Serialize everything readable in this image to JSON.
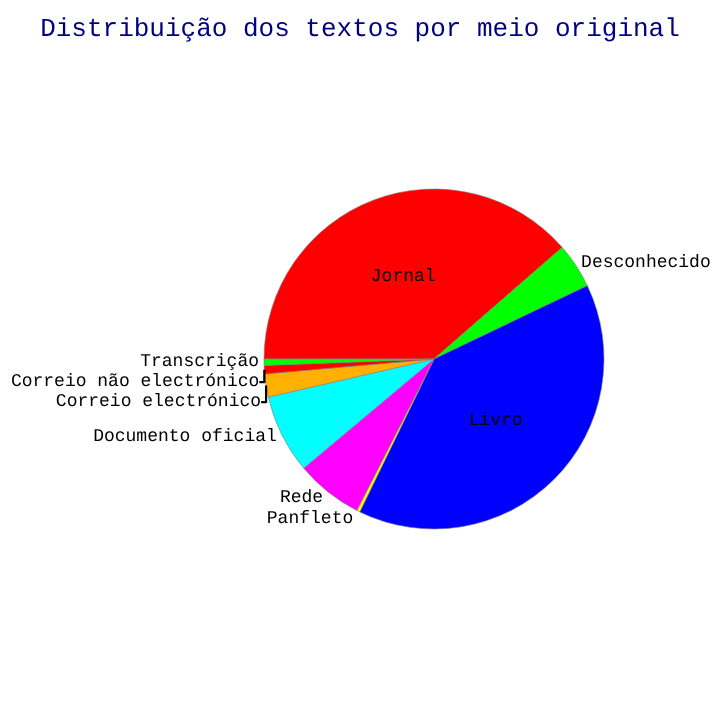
{
  "chart_data": {
    "type": "pie",
    "title": "Distribuição dos textos por meio original",
    "categories": [
      "Jornal",
      "Desconhecido",
      "Livro",
      "Panfleto",
      "Rede",
      "Documento oficial",
      "Correio electrónico",
      "Correio não electrónico",
      "Transcrição"
    ],
    "values": [
      38.6,
      4.3,
      39.3,
      0.3,
      6.4,
      7.5,
      2.2,
      0.8,
      0.6
    ],
    "colors": [
      "#ff0000",
      "#00ff00",
      "#0000ff",
      "#ffff00",
      "#ff00ff",
      "#00ffff",
      "#ffb000",
      "#ff0000",
      "#00ff00"
    ]
  }
}
